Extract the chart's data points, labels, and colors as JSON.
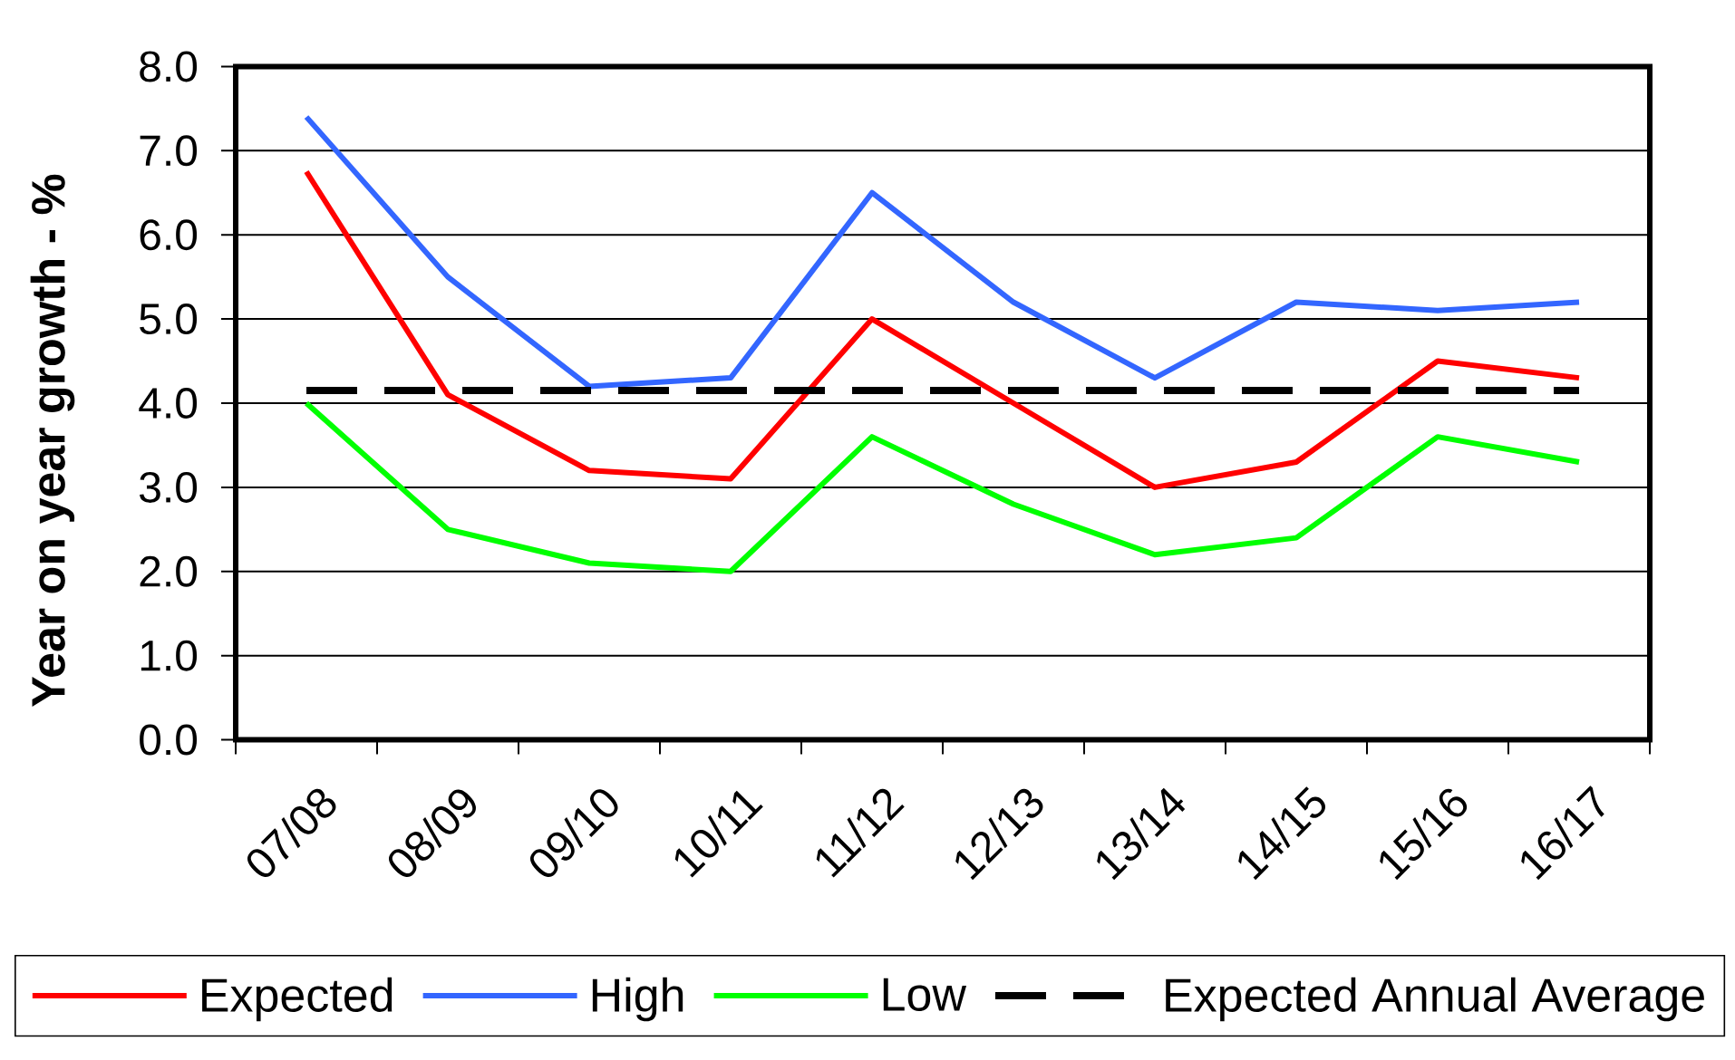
{
  "chart_data": {
    "type": "line",
    "ylabel": "Year on year growth - %",
    "categories": [
      "07/08",
      "08/09",
      "09/10",
      "10/11",
      "11/12",
      "12/13",
      "13/14",
      "14/15",
      "15/16",
      "16/17"
    ],
    "series": [
      {
        "name": "Expected",
        "color": "#ff0000",
        "values": [
          6.75,
          4.1,
          3.2,
          3.1,
          5.0,
          4.0,
          3.0,
          3.3,
          4.5,
          4.3
        ]
      },
      {
        "name": "High",
        "color": "#3366ff",
        "values": [
          7.4,
          5.5,
          4.2,
          4.3,
          6.5,
          5.2,
          4.3,
          5.2,
          5.1,
          5.2
        ]
      },
      {
        "name": "Low",
        "color": "#00ff00",
        "values": [
          4.0,
          2.5,
          2.1,
          2.0,
          3.6,
          2.8,
          2.2,
          2.4,
          3.6,
          3.3
        ]
      },
      {
        "name": "Expected Annual Average",
        "color": "#000000",
        "line_style": "dashed",
        "values": [
          4.15,
          4.15,
          4.15,
          4.15,
          4.15,
          4.15,
          4.15,
          4.15,
          4.15,
          4.15
        ]
      }
    ],
    "ylim": [
      0,
      8
    ],
    "yticks": [
      {
        "value": 0,
        "label": "0.0"
      },
      {
        "value": 1,
        "label": "1.0"
      },
      {
        "value": 2,
        "label": "2.0"
      },
      {
        "value": 3,
        "label": "3.0"
      },
      {
        "value": 4,
        "label": "4.0"
      },
      {
        "value": 5,
        "label": "5.0"
      },
      {
        "value": 6,
        "label": "6.0"
      },
      {
        "value": 7,
        "label": "7.0"
      },
      {
        "value": 8,
        "label": "8.0"
      }
    ],
    "grid": "y",
    "legend": "bottom",
    "line_style": "solid"
  }
}
